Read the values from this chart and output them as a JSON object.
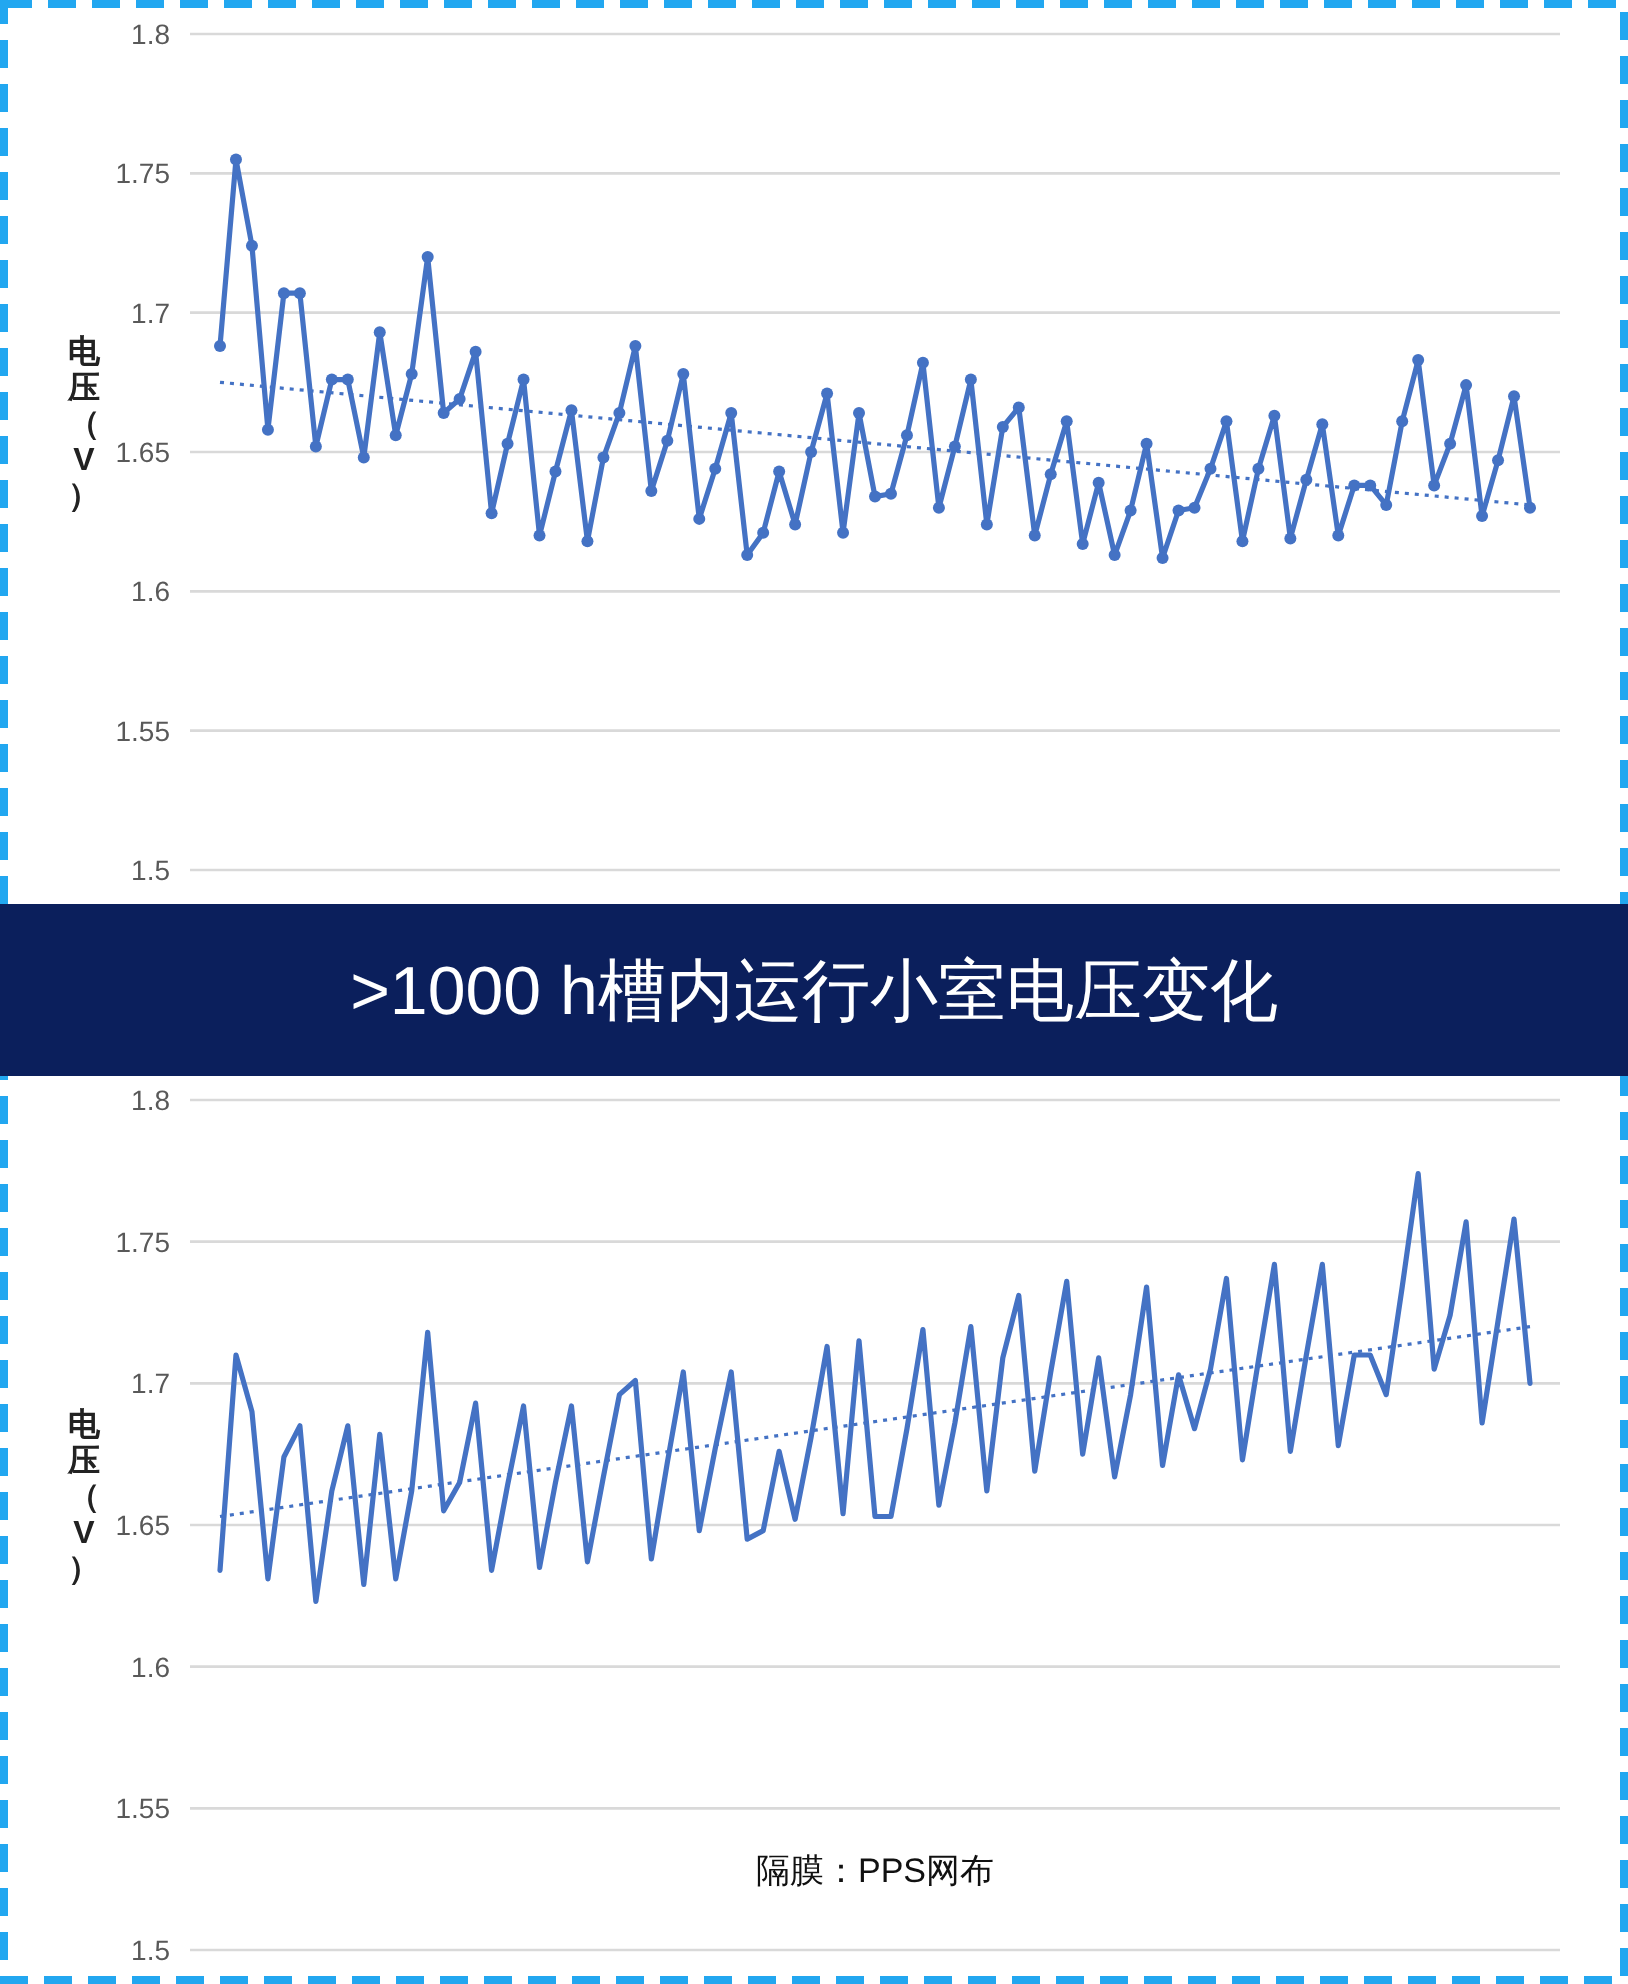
{
  "chart_data": [
    {
      "type": "line",
      "ylabel": "电压（V）",
      "categories": [
        null,
        null,
        null,
        null,
        null,
        null,
        null,
        null,
        null,
        null,
        null,
        null,
        null,
        null,
        null,
        null,
        null,
        null,
        null,
        null,
        null,
        null,
        null,
        null,
        null,
        null,
        null,
        null,
        null,
        null,
        null,
        null,
        null,
        null,
        null,
        null,
        null,
        null,
        null,
        null,
        null,
        null,
        null,
        null,
        null,
        null,
        null,
        null,
        null,
        null,
        null,
        null,
        null,
        null,
        null,
        null,
        null,
        null,
        null,
        null,
        null,
        null,
        null,
        null,
        null,
        null,
        null,
        null,
        null,
        null,
        null,
        null,
        null,
        null,
        null,
        null,
        null,
        null,
        null,
        null,
        null,
        null,
        null
      ],
      "ylim": [
        1.5,
        1.8
      ],
      "yticks": [
        1.5,
        1.55,
        1.6,
        1.65,
        1.7,
        1.75,
        1.8
      ],
      "grid": "y",
      "tick_labels": "y",
      "series": [
        {
          "color": "#4472c4",
          "marker": "circle",
          "line_style": "solid",
          "values": [
            1.688,
            1.755,
            1.724,
            1.658,
            1.707,
            1.707,
            1.652,
            1.676,
            1.676,
            1.648,
            1.693,
            1.656,
            1.678,
            1.72,
            1.664,
            1.669,
            1.686,
            1.628,
            1.653,
            1.676,
            1.62,
            1.643,
            1.665,
            1.618,
            1.648,
            1.664,
            1.688,
            1.636,
            1.654,
            1.678,
            1.626,
            1.644,
            1.664,
            1.613,
            1.621,
            1.643,
            1.624,
            1.65,
            1.671,
            1.621,
            1.664,
            1.634,
            1.635,
            1.656,
            1.682,
            1.63,
            1.652,
            1.676,
            1.624,
            1.659,
            1.666,
            1.62,
            1.642,
            1.661,
            1.617,
            1.639,
            1.613,
            1.629,
            1.653,
            1.612,
            1.629,
            1.63,
            1.644,
            1.661,
            1.618,
            1.644,
            1.663,
            1.619,
            1.64,
            1.66,
            1.62,
            1.638,
            1.638,
            1.631,
            1.661,
            1.683,
            1.638,
            1.653,
            1.674,
            1.627,
            1.647,
            1.67,
            1.63
          ]
        },
        {
          "type": "line",
          "color": "#4472c4",
          "marker": "none",
          "line_style": "dotted",
          "values": [
            1.675,
            null,
            null,
            null,
            null,
            null,
            null,
            null,
            null,
            null,
            null,
            null,
            null,
            null,
            null,
            null,
            null,
            null,
            null,
            null,
            null,
            null,
            null,
            null,
            null,
            null,
            null,
            null,
            null,
            null,
            null,
            null,
            null,
            null,
            null,
            null,
            null,
            null,
            null,
            null,
            null,
            null,
            null,
            null,
            null,
            null,
            null,
            null,
            null,
            null,
            null,
            null,
            null,
            null,
            null,
            null,
            null,
            null,
            null,
            null,
            null,
            null,
            null,
            null,
            null,
            null,
            null,
            null,
            null,
            null,
            null,
            null,
            null,
            null,
            null,
            null,
            null,
            null,
            null,
            null,
            null,
            null,
            1.631
          ]
        }
      ]
    },
    {
      "type": "line",
      "title": ">1000 h槽内运行小室电压变化",
      "ylabel": "电压（V）",
      "annotations": [
        "隔膜：PPS网布"
      ],
      "categories": [
        null,
        null,
        null,
        null,
        null,
        null,
        null,
        null,
        null,
        null,
        null,
        null,
        null,
        null,
        null,
        null,
        null,
        null,
        null,
        null,
        null,
        null,
        null,
        null,
        null,
        null,
        null,
        null,
        null,
        null,
        null,
        null,
        null,
        null,
        null,
        null,
        null,
        null,
        null,
        null,
        null,
        null,
        null,
        null,
        null,
        null,
        null,
        null,
        null,
        null,
        null,
        null,
        null,
        null,
        null,
        null,
        null,
        null,
        null,
        null,
        null,
        null,
        null,
        null,
        null,
        null,
        null,
        null,
        null,
        null,
        null,
        null,
        null,
        null,
        null,
        null,
        null,
        null,
        null,
        null,
        null,
        null,
        null
      ],
      "ylim": [
        1.5,
        1.8
      ],
      "yticks": [
        1.5,
        1.55,
        1.6,
        1.65,
        1.7,
        1.75,
        1.8
      ],
      "grid": "y",
      "tick_labels": "y",
      "series": [
        {
          "color": "#4472c4",
          "marker": "none",
          "line_style": "solid",
          "values": [
            1.634,
            1.71,
            1.69,
            1.631,
            1.674,
            1.685,
            1.623,
            1.662,
            1.685,
            1.629,
            1.682,
            1.631,
            1.662,
            1.718,
            1.655,
            1.665,
            1.693,
            1.634,
            1.664,
            1.692,
            1.635,
            1.665,
            1.692,
            1.637,
            1.667,
            1.696,
            1.701,
            1.638,
            1.672,
            1.704,
            1.648,
            1.677,
            1.704,
            1.645,
            1.648,
            1.676,
            1.652,
            1.681,
            1.713,
            1.654,
            1.715,
            1.653,
            1.653,
            1.684,
            1.719,
            1.657,
            1.686,
            1.72,
            1.662,
            1.709,
            1.731,
            1.669,
            1.704,
            1.736,
            1.675,
            1.709,
            1.667,
            1.696,
            1.734,
            1.671,
            1.703,
            1.684,
            1.705,
            1.737,
            1.673,
            1.708,
            1.742,
            1.676,
            1.71,
            1.742,
            1.678,
            1.71,
            1.71,
            1.696,
            1.734,
            1.774,
            1.705,
            1.724,
            1.757,
            1.686,
            1.722,
            1.758,
            1.7
          ]
        },
        {
          "type": "line",
          "color": "#4472c4",
          "marker": "none",
          "line_style": "dotted",
          "values": [
            1.653,
            null,
            null,
            null,
            null,
            null,
            null,
            null,
            null,
            null,
            null,
            null,
            null,
            null,
            null,
            null,
            null,
            null,
            null,
            null,
            null,
            null,
            null,
            null,
            null,
            null,
            null,
            null,
            null,
            null,
            null,
            null,
            null,
            null,
            null,
            null,
            null,
            null,
            null,
            null,
            null,
            null,
            null,
            null,
            null,
            null,
            null,
            null,
            null,
            null,
            null,
            null,
            null,
            null,
            null,
            null,
            null,
            null,
            null,
            null,
            null,
            null,
            null,
            null,
            null,
            null,
            null,
            null,
            null,
            null,
            null,
            null,
            null,
            null,
            null,
            null,
            null,
            null,
            null,
            null,
            null,
            null,
            1.72
          ]
        }
      ]
    }
  ]
}
